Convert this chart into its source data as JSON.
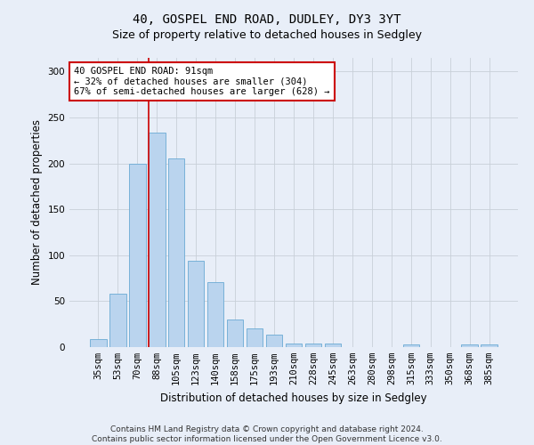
{
  "title1": "40, GOSPEL END ROAD, DUDLEY, DY3 3YT",
  "title2": "Size of property relative to detached houses in Sedgley",
  "xlabel": "Distribution of detached houses by size in Sedgley",
  "ylabel": "Number of detached properties",
  "categories": [
    "35sqm",
    "53sqm",
    "70sqm",
    "88sqm",
    "105sqm",
    "123sqm",
    "140sqm",
    "158sqm",
    "175sqm",
    "193sqm",
    "210sqm",
    "228sqm",
    "245sqm",
    "263sqm",
    "280sqm",
    "298sqm",
    "315sqm",
    "333sqm",
    "350sqm",
    "368sqm",
    "385sqm"
  ],
  "values": [
    9,
    58,
    200,
    234,
    205,
    94,
    71,
    30,
    20,
    14,
    4,
    4,
    4,
    0,
    0,
    0,
    3,
    0,
    0,
    3,
    3
  ],
  "bar_color": "#bad4ee",
  "bar_edge_color": "#6aaad4",
  "red_line_bar_index": 3,
  "annotation_box_text": "40 GOSPEL END ROAD: 91sqm\n← 32% of detached houses are smaller (304)\n67% of semi-detached houses are larger (628) →",
  "ylim": [
    0,
    315
  ],
  "yticks": [
    0,
    50,
    100,
    150,
    200,
    250,
    300
  ],
  "grid_color": "#c8d0d8",
  "background_color": "#e8eef8",
  "footer_line1": "Contains HM Land Registry data © Crown copyright and database right 2024.",
  "footer_line2": "Contains public sector information licensed under the Open Government Licence v3.0.",
  "annotation_box_facecolor": "#ffffff",
  "annotation_box_edgecolor": "#cc0000",
  "red_line_color": "#cc0000",
  "title1_fontsize": 10,
  "title2_fontsize": 9,
  "xlabel_fontsize": 8.5,
  "ylabel_fontsize": 8.5,
  "tick_fontsize": 7.5,
  "annotation_fontsize": 7.5,
  "footer_fontsize": 6.5
}
